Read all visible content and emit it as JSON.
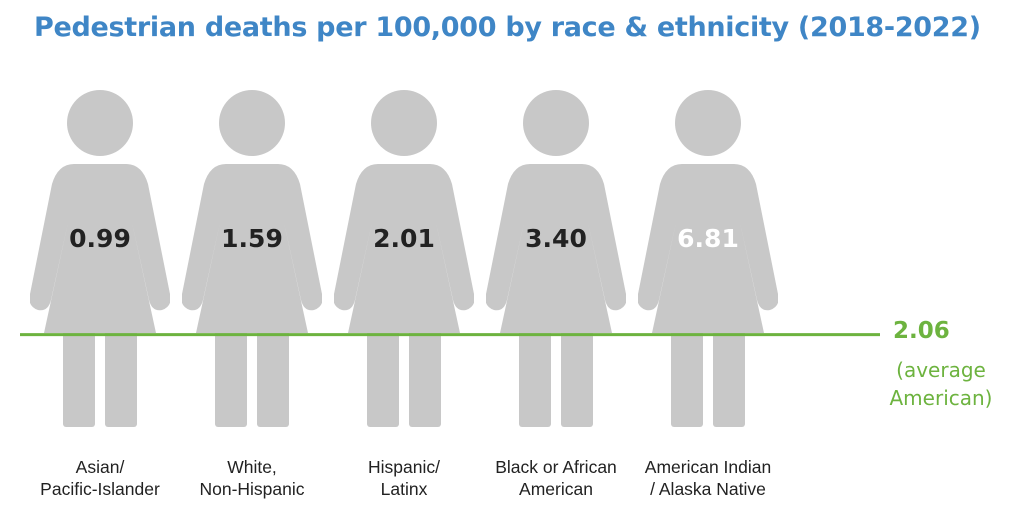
{
  "chart_data": {
    "type": "pictograph",
    "title": "Pedestrian deaths per 100,000 by race & ethnicity (2018-2022)",
    "unit": "deaths per 100,000",
    "categories": [
      [
        "Asian/",
        "Pacific-Islander"
      ],
      [
        "White,",
        "Non-Hispanic"
      ],
      [
        "Hispanic/",
        "Latinx"
      ],
      [
        "Black or African",
        "American"
      ],
      [
        "American Indian",
        "/ Alaska Native"
      ]
    ],
    "values": [
      0.99,
      1.59,
      2.01,
      3.4,
      6.81
    ],
    "value_labels": [
      "0.99",
      "1.59",
      "2.01",
      "3.40",
      "6.81"
    ],
    "scale_max": 7.5,
    "reference": {
      "value": 2.06,
      "value_label": "2.06",
      "label_lines": [
        "(average",
        "American)"
      ]
    },
    "colors": {
      "title": "#3f86c6",
      "fill": "#db6136",
      "empty": "#c8c8c8",
      "reference": "#6db33f",
      "text_dark": "#222222",
      "text_light": "#ffffff"
    }
  }
}
